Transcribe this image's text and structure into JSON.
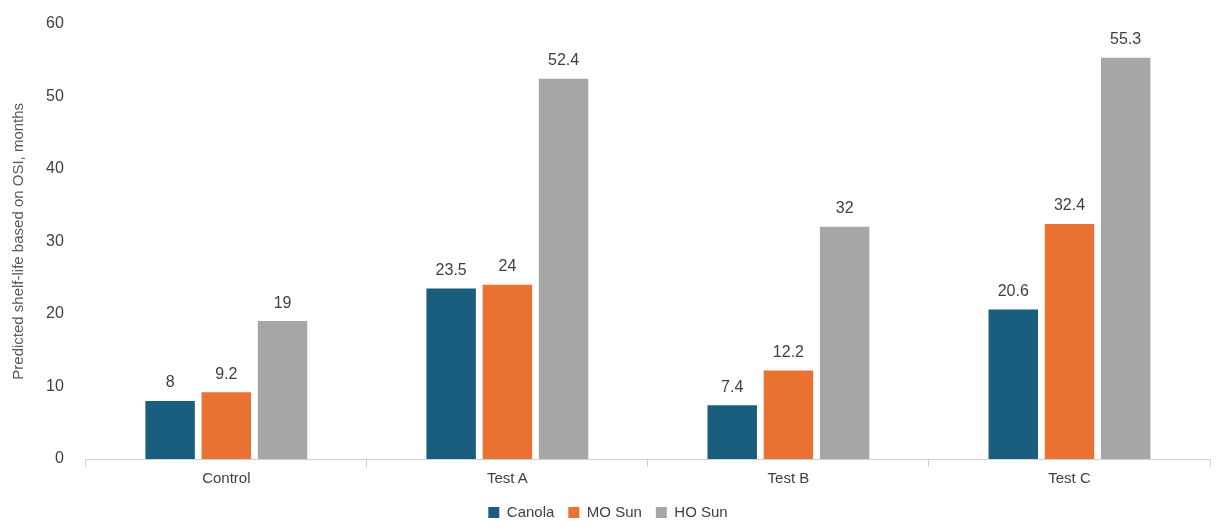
{
  "chart_data": {
    "type": "bar",
    "ylabel": "Predicted shelf-life based on OSI, months",
    "categories": [
      "Control",
      "Test A",
      "Test B",
      "Test C"
    ],
    "series": [
      {
        "name": "Canola",
        "color": "#195e7f",
        "values": [
          8,
          23.5,
          7.4,
          20.6
        ]
      },
      {
        "name": "MO Sun",
        "color": "#e97132",
        "values": [
          9.2,
          24,
          12.2,
          32.4
        ]
      },
      {
        "name": "HO Sun",
        "color": "#a6a6a6",
        "values": [
          19,
          52.4,
          32,
          55.3
        ]
      }
    ],
    "ylim": [
      0,
      60
    ],
    "yticks": [
      0,
      10,
      20,
      30,
      40,
      50,
      60
    ],
    "grid": false,
    "legend": "bottom",
    "data_labels": true
  }
}
